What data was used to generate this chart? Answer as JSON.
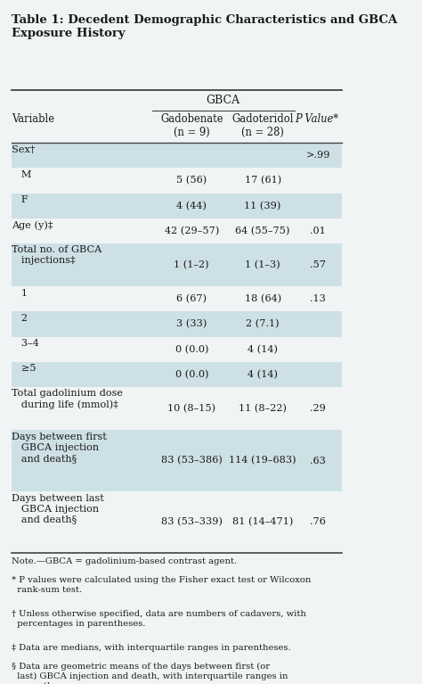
{
  "title": "Table 1: Decedent Demographic Characteristics and GBCA\nExposure History",
  "bg_color": "#f0f4f5",
  "header_gbca": "GBCA",
  "col1_header": "Variable",
  "col2_header": "Gadobenate\n(n = 9)",
  "col3_header": "Gadoteridol\n(n = 28)",
  "col4_header": "P Value*",
  "rows": [
    {
      "var": "Sex†",
      "col2": "",
      "col3": "",
      "col4": ">.99",
      "shaded": true,
      "indent": 0
    },
    {
      "var": "   M",
      "col2": "5 (56)",
      "col3": "17 (61)",
      "col4": "",
      "shaded": false,
      "indent": 0
    },
    {
      "var": "   F",
      "col2": "4 (44)",
      "col3": "11 (39)",
      "col4": "",
      "shaded": true,
      "indent": 0
    },
    {
      "var": "Age (y)‡",
      "col2": "42 (29–57)",
      "col3": "64 (55–75)",
      "col4": ".01",
      "shaded": false,
      "indent": 0
    },
    {
      "var": "Total no. of GBCA\n   injections‡",
      "col2": "1 (1–2)",
      "col3": "1 (1–3)",
      "col4": ".57",
      "shaded": true,
      "indent": 0
    },
    {
      "var": "   1",
      "col2": "6 (67)",
      "col3": "18 (64)",
      "col4": ".13",
      "shaded": false,
      "indent": 0
    },
    {
      "var": "   2",
      "col2": "3 (33)",
      "col3": "2 (7.1)",
      "col4": "",
      "shaded": true,
      "indent": 0
    },
    {
      "var": "   3–4",
      "col2": "0 (0.0)",
      "col3": "4 (14)",
      "col4": "",
      "shaded": false,
      "indent": 0
    },
    {
      "var": "   ≥5",
      "col2": "0 (0.0)",
      "col3": "4 (14)",
      "col4": "",
      "shaded": true,
      "indent": 0
    },
    {
      "var": "Total gadolinium dose\n   during life (mmol)‡",
      "col2": "10 (8–15)",
      "col3": "11 (8–22)",
      "col4": ".29",
      "shaded": false,
      "indent": 0
    },
    {
      "var": "Days between first\n   GBCA injection\n   and death§",
      "col2": "83 (53–386)",
      "col3": "114 (19–683)",
      "col4": ".63",
      "shaded": true,
      "indent": 0
    },
    {
      "var": "Days between last\n   GBCA injection\n   and death§",
      "col2": "83 (53–339)",
      "col3": "81 (14–471)",
      "col4": ".76",
      "shaded": false,
      "indent": 0
    }
  ],
  "footnotes": [
    "Note.—GBCA = gadolinium-based contrast agent.",
    "* P values were calculated using the Fisher exact test or Wilcoxon\n  rank-sum test.",
    "† Unless otherwise specified, data are numbers of cadavers, with\n  percentages in parentheses.",
    "‡ Data are medians, with interquartile ranges in parentheses.",
    "§ Data are geometric means of the days between first (or\n  last) GBCA injection and death, with interquartile ranges in\n  parentheses."
  ],
  "shaded_color": "#cde0e6",
  "text_color": "#1a1a1a",
  "border_color": "#444444"
}
